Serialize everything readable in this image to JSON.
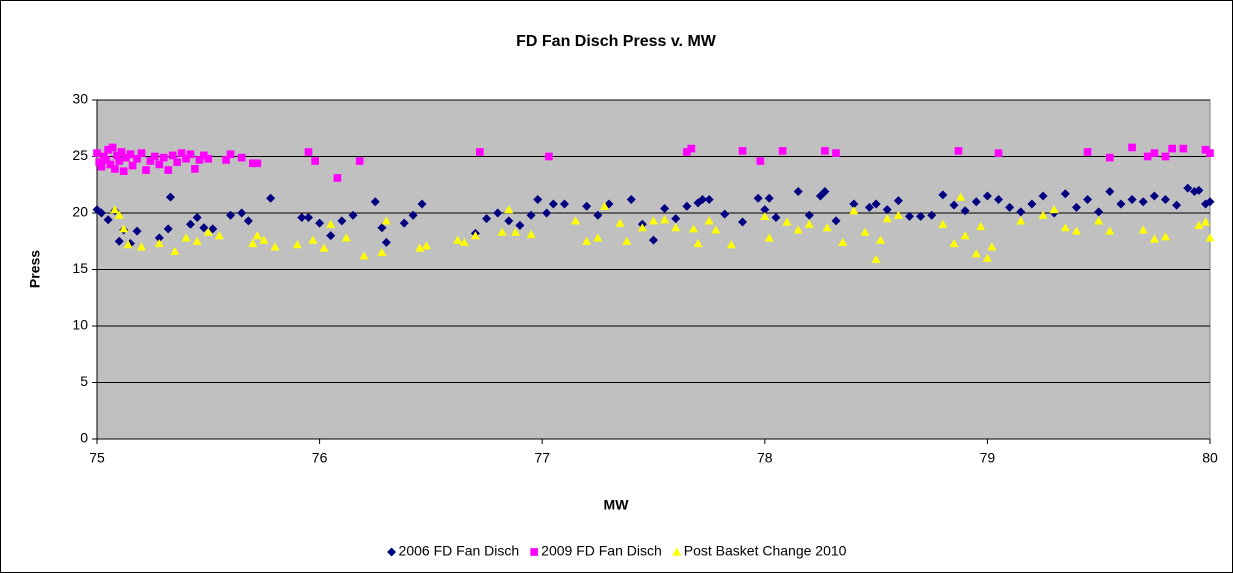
{
  "chart_data": {
    "type": "scatter",
    "title": "FD Fan Disch Press v. MW",
    "x_label": "MW",
    "y_label": "Press",
    "xlim": [
      75,
      80
    ],
    "xticks": [
      75,
      76,
      77,
      78,
      79,
      80
    ],
    "ylim": [
      0,
      30
    ],
    "yticks": [
      0,
      5,
      10,
      15,
      20,
      25,
      30
    ],
    "grid": true,
    "plot_background": "#c0c0c0",
    "legend": "bottom",
    "series": [
      {
        "name": "2006 FD Fan Disch",
        "color": "#000080",
        "marker": "diamond",
        "x": [
          75.0,
          75.02,
          75.05,
          75.08,
          75.1,
          75.12,
          75.15,
          75.18,
          75.28,
          75.32,
          75.33,
          75.42,
          75.45,
          75.48,
          75.52,
          75.6,
          75.65,
          75.68,
          75.78,
          75.92,
          75.95,
          76.0,
          76.05,
          76.1,
          76.15,
          76.25,
          76.28,
          76.3,
          76.38,
          76.42,
          76.46,
          76.7,
          76.75,
          76.8,
          76.85,
          76.9,
          76.95,
          76.98,
          77.02,
          77.05,
          77.1,
          77.2,
          77.25,
          77.3,
          77.4,
          77.45,
          77.5,
          77.55,
          77.6,
          77.65,
          77.7,
          77.72,
          77.75,
          77.82,
          77.9,
          77.97,
          78.0,
          78.02,
          78.05,
          78.15,
          78.2,
          78.25,
          78.27,
          78.32,
          78.4,
          78.47,
          78.5,
          78.55,
          78.6,
          78.65,
          78.7,
          78.75,
          78.8,
          78.85,
          78.9,
          78.95,
          79.0,
          79.05,
          79.1,
          79.15,
          79.2,
          79.25,
          79.3,
          79.35,
          79.4,
          79.45,
          79.5,
          79.55,
          79.6,
          79.65,
          79.7,
          79.75,
          79.8,
          79.85,
          79.9,
          79.93,
          79.95,
          79.98,
          80.0
        ],
        "values": [
          20.3,
          20.0,
          19.4,
          20.2,
          17.5,
          18.5,
          17.3,
          18.4,
          17.8,
          18.6,
          21.4,
          19.0,
          19.6,
          18.7,
          18.6,
          19.8,
          20.0,
          19.3,
          21.3,
          19.6,
          19.6,
          19.1,
          18.0,
          19.3,
          19.8,
          21.0,
          18.7,
          17.4,
          19.1,
          19.8,
          20.8,
          18.2,
          19.5,
          20.0,
          19.3,
          18.9,
          19.8,
          21.2,
          20.0,
          20.8,
          20.8,
          20.6,
          19.8,
          20.8,
          21.2,
          19.0,
          17.6,
          20.4,
          19.5,
          20.6,
          20.9,
          21.2,
          21.2,
          19.9,
          19.2,
          21.3,
          20.3,
          21.3,
          19.6,
          21.9,
          19.8,
          21.5,
          21.9,
          19.3,
          20.8,
          20.5,
          20.8,
          20.3,
          21.1,
          19.7,
          19.7,
          19.8,
          21.6,
          20.7,
          20.2,
          21.0,
          21.5,
          21.2,
          20.5,
          20.1,
          20.8,
          21.5,
          20.0,
          21.7,
          20.5,
          21.2,
          20.1,
          21.9,
          20.8,
          21.2,
          21.0,
          21.5,
          21.2,
          20.7,
          22.2,
          21.9,
          22.0,
          20.8,
          21.0
        ]
      },
      {
        "name": "2009 FD Fan Disch",
        "color": "#ff00ff",
        "marker": "square",
        "x": [
          75.0,
          75.01,
          75.02,
          75.03,
          75.04,
          75.05,
          75.06,
          75.07,
          75.08,
          75.09,
          75.1,
          75.11,
          75.12,
          75.13,
          75.15,
          75.16,
          75.18,
          75.2,
          75.22,
          75.24,
          75.26,
          75.28,
          75.3,
          75.32,
          75.34,
          75.36,
          75.38,
          75.4,
          75.42,
          75.44,
          75.46,
          75.48,
          75.5,
          75.58,
          75.6,
          75.65,
          75.7,
          75.72,
          75.95,
          75.98,
          76.08,
          76.18,
          76.72,
          77.03,
          77.65,
          77.67,
          77.9,
          77.98,
          78.08,
          78.27,
          78.32,
          78.87,
          79.05,
          79.45,
          79.55,
          79.65,
          79.72,
          79.75,
          79.8,
          79.83,
          79.88,
          79.98,
          80.0
        ],
        "values": [
          25.3,
          24.5,
          24.1,
          25.0,
          24.7,
          25.6,
          24.3,
          25.8,
          23.9,
          25.1,
          24.6,
          25.4,
          23.7,
          24.9,
          25.2,
          24.2,
          24.8,
          25.3,
          23.8,
          24.6,
          25.0,
          24.3,
          24.9,
          23.8,
          25.1,
          24.5,
          25.3,
          24.8,
          25.2,
          23.9,
          24.7,
          25.1,
          24.8,
          24.7,
          25.2,
          24.9,
          24.4,
          24.4,
          25.4,
          24.6,
          23.1,
          24.6,
          25.4,
          25.0,
          25.4,
          25.7,
          25.5,
          24.6,
          25.5,
          25.5,
          25.3,
          25.5,
          25.3,
          25.4,
          24.9,
          25.8,
          25.0,
          25.3,
          25.0,
          25.7,
          25.7,
          25.6,
          25.3
        ]
      },
      {
        "name": "Post Basket Change 2010",
        "color": "#ffff00",
        "marker": "triangle",
        "x": [
          75.08,
          75.1,
          75.12,
          75.14,
          75.2,
          75.28,
          75.35,
          75.4,
          75.45,
          75.5,
          75.55,
          75.7,
          75.72,
          75.75,
          75.8,
          75.9,
          75.97,
          76.02,
          76.05,
          76.12,
          76.2,
          76.28,
          76.3,
          76.45,
          76.48,
          76.62,
          76.65,
          76.7,
          76.82,
          76.85,
          76.88,
          76.95,
          77.15,
          77.2,
          77.25,
          77.28,
          77.35,
          77.38,
          77.45,
          77.5,
          77.55,
          77.6,
          77.68,
          77.7,
          77.75,
          77.78,
          77.85,
          78.0,
          78.02,
          78.1,
          78.15,
          78.2,
          78.28,
          78.35,
          78.4,
          78.45,
          78.5,
          78.52,
          78.55,
          78.6,
          78.8,
          78.85,
          78.88,
          78.9,
          78.95,
          78.97,
          79.0,
          79.02,
          79.15,
          79.25,
          79.3,
          79.35,
          79.4,
          79.5,
          79.55,
          79.7,
          79.75,
          79.8,
          79.95,
          79.98,
          80.0
        ],
        "values": [
          20.3,
          19.8,
          18.6,
          17.2,
          17.0,
          17.3,
          16.6,
          17.8,
          17.5,
          18.3,
          18.0,
          17.3,
          18.0,
          17.6,
          17.0,
          17.2,
          17.6,
          16.9,
          19.0,
          17.8,
          16.2,
          16.5,
          19.3,
          16.9,
          17.1,
          17.6,
          17.4,
          18.0,
          18.3,
          20.3,
          18.3,
          18.1,
          19.3,
          17.5,
          17.8,
          20.6,
          19.1,
          17.5,
          18.7,
          19.3,
          19.4,
          18.7,
          18.6,
          17.3,
          19.3,
          18.5,
          17.2,
          19.7,
          17.8,
          19.2,
          18.5,
          19.0,
          18.7,
          17.4,
          20.2,
          18.3,
          15.9,
          17.6,
          19.5,
          19.8,
          19.0,
          17.3,
          21.4,
          18.0,
          16.4,
          18.8,
          16.0,
          17.0,
          19.3,
          19.8,
          20.3,
          18.7,
          18.4,
          19.3,
          18.4,
          18.5,
          17.7,
          17.9,
          18.9,
          19.2,
          17.8
        ]
      }
    ]
  }
}
